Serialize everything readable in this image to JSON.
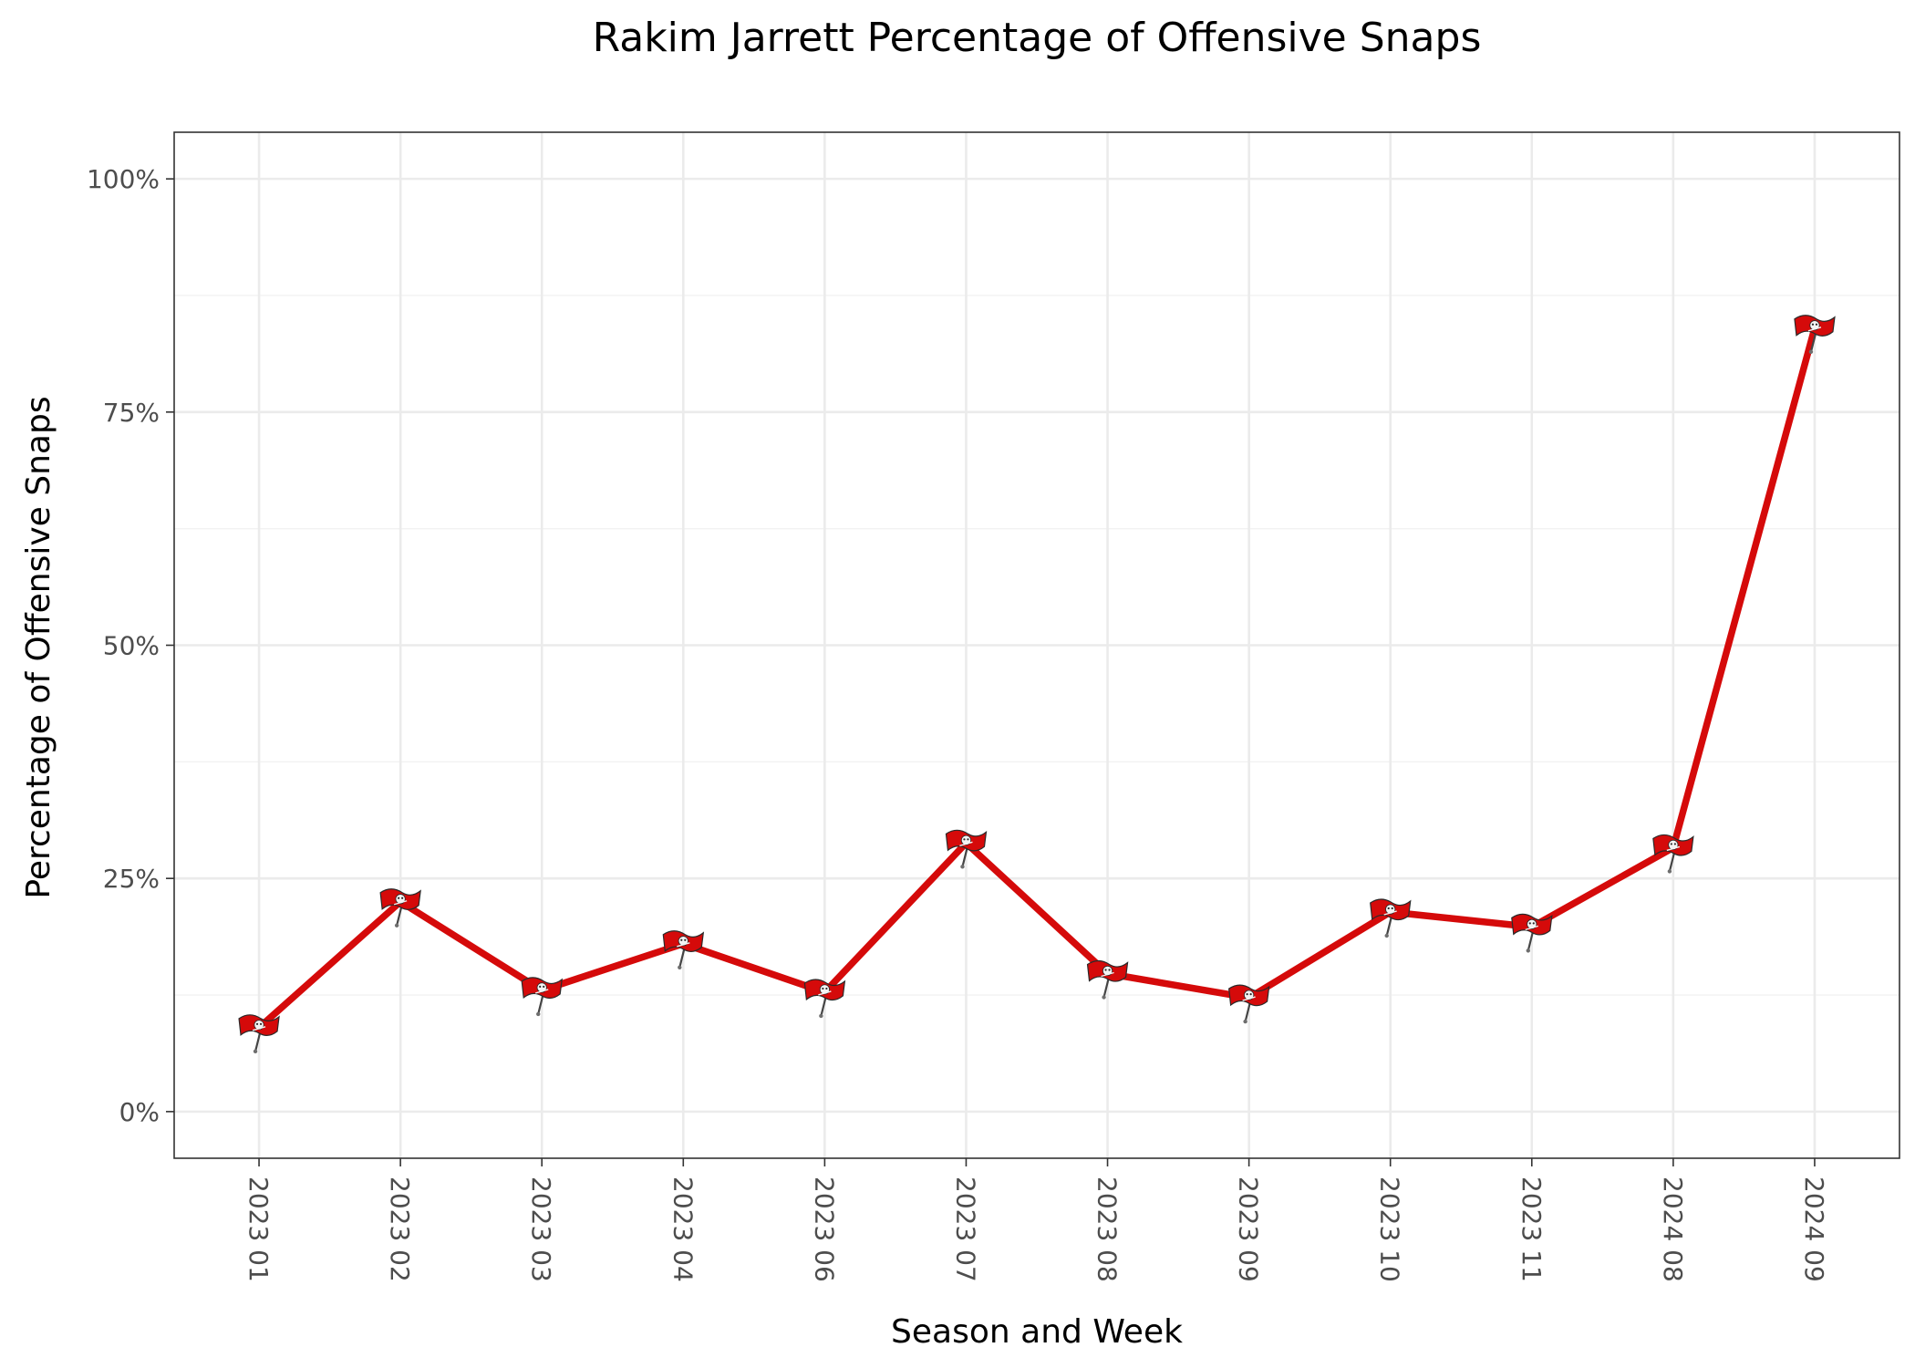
{
  "chart_data": {
    "type": "line",
    "title": "Rakim Jarrett Percentage of Offensive Snaps",
    "xlabel": "Season and Week",
    "ylabel": "Percentage of Offensive Snaps",
    "categories": [
      "2023 01",
      "2023 02",
      "2023 03",
      "2023 04",
      "2023 06",
      "2023 07",
      "2023 08",
      "2023 09",
      "2023 10",
      "2023 11",
      "2024 08",
      "2024 09"
    ],
    "series": [
      {
        "values": [
          0.09,
          0.225,
          0.13,
          0.18,
          0.128,
          0.288,
          0.148,
          0.122,
          0.214,
          0.198,
          0.283,
          0.84
        ],
        "color": "#d50a0a",
        "marker": "tampa-bay-buccaneers-flag-logo"
      }
    ],
    "ylim": [
      -0.05,
      1.05
    ],
    "y_ticks": [
      0,
      0.25,
      0.5,
      0.75,
      1.0
    ],
    "y_tick_labels": [
      "0%",
      "25%",
      "50%",
      "75%",
      "100%"
    ],
    "grid": true,
    "legend": "none"
  }
}
